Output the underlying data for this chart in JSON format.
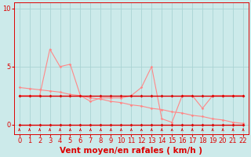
{
  "xlabel": "Vent moyen/en rafales ( km/h )",
  "xlim": [
    -0.5,
    22.5
  ],
  "ylim": [
    -0.8,
    10.5
  ],
  "yticks": [
    0,
    5,
    10
  ],
  "xticks": [
    0,
    1,
    2,
    3,
    4,
    5,
    6,
    7,
    8,
    9,
    10,
    11,
    12,
    13,
    14,
    15,
    16,
    17,
    18,
    19,
    20,
    21,
    22
  ],
  "bg_color": "#cceaea",
  "grid_color": "#aad4d4",
  "line1_x": [
    0,
    1,
    2,
    3,
    4,
    5,
    6,
    7,
    8,
    9,
    10,
    11,
    12,
    13,
    14,
    15,
    16,
    17,
    18,
    19,
    20,
    21,
    22
  ],
  "line1_y": [
    0,
    0,
    0,
    0,
    0,
    0,
    0,
    0,
    0,
    0,
    0,
    0,
    0,
    0,
    0,
    0,
    0,
    0,
    0,
    0,
    0,
    0,
    0
  ],
  "line1_color": "#dd0000",
  "line2_x": [
    0,
    1,
    2,
    3,
    4,
    5,
    6,
    7,
    8,
    9,
    10,
    11,
    12,
    13,
    14,
    15,
    16,
    17,
    18,
    19,
    20,
    21,
    22
  ],
  "line2_y": [
    2.5,
    2.5,
    2.5,
    2.5,
    2.5,
    2.5,
    2.5,
    2.5,
    2.5,
    2.5,
    2.5,
    2.5,
    2.5,
    2.5,
    2.5,
    2.5,
    2.5,
    2.5,
    2.5,
    2.5,
    2.5,
    2.5,
    2.5
  ],
  "line2_color": "#dd0000",
  "line3_x": [
    0,
    1,
    2,
    3,
    4,
    5,
    6,
    7,
    8,
    9,
    10,
    11,
    12,
    13,
    14,
    15,
    16,
    17,
    18,
    19,
    20,
    21,
    22
  ],
  "line3_y": [
    3.2,
    3.1,
    3.0,
    2.9,
    2.8,
    2.6,
    2.5,
    2.3,
    2.2,
    2.0,
    1.9,
    1.7,
    1.6,
    1.4,
    1.3,
    1.1,
    1.0,
    0.8,
    0.7,
    0.5,
    0.4,
    0.2,
    0.1
  ],
  "line3_color": "#ff8888",
  "line4_x": [
    0,
    1,
    2,
    3,
    4,
    5,
    6,
    7,
    8,
    9,
    10,
    11,
    12,
    13,
    14,
    15,
    16,
    17,
    18,
    19,
    20,
    21,
    22
  ],
  "line4_y": [
    2.5,
    2.5,
    2.5,
    6.5,
    5.0,
    5.2,
    2.5,
    2.0,
    2.3,
    2.3,
    2.3,
    2.5,
    3.2,
    5.0,
    0.5,
    0.2,
    2.5,
    2.5,
    1.4,
    2.5,
    2.5,
    2.5,
    2.5
  ],
  "line4_color": "#ff8888",
  "arrow_color": "#dd0000",
  "tick_fontsize": 6,
  "label_fontsize": 7.5
}
